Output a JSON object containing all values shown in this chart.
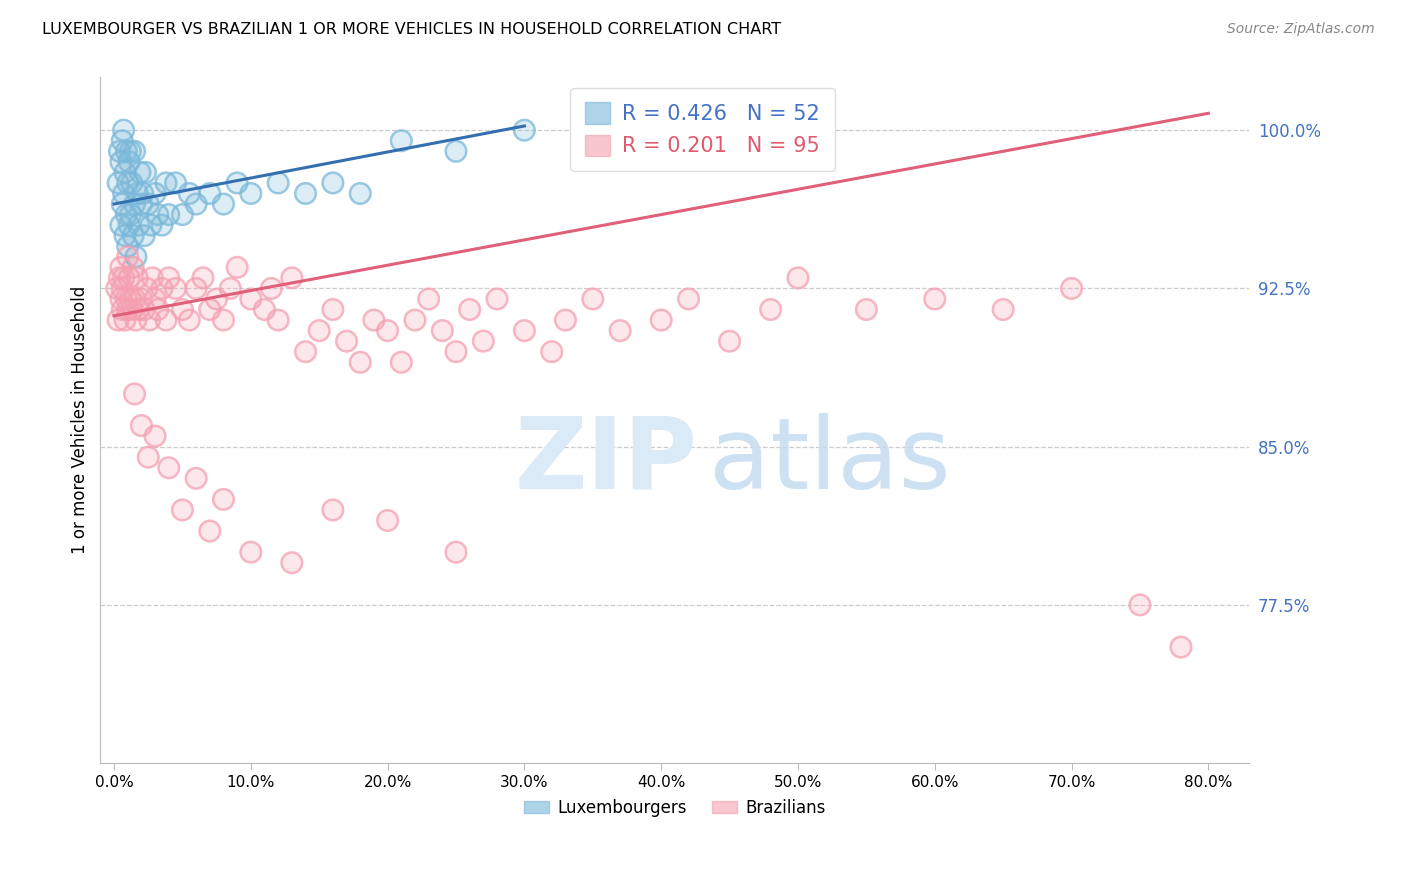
{
  "title": "LUXEMBOURGER VS BRAZILIAN 1 OR MORE VEHICLES IN HOUSEHOLD CORRELATION CHART",
  "source": "Source: ZipAtlas.com",
  "ylabel": "1 or more Vehicles in Household",
  "xlabel_ticks": [
    "0.0%",
    "10.0%",
    "20.0%",
    "30.0%",
    "40.0%",
    "50.0%",
    "60.0%",
    "70.0%",
    "80.0%"
  ],
  "xlabel_vals": [
    0.0,
    10.0,
    20.0,
    30.0,
    40.0,
    50.0,
    60.0,
    70.0,
    80.0
  ],
  "xlim": [
    -1.0,
    83.0
  ],
  "ylim": [
    70.0,
    102.5
  ],
  "blue_R": 0.426,
  "blue_N": 52,
  "pink_R": 0.201,
  "pink_N": 95,
  "blue_color": "#7ab8d9",
  "pink_color": "#f4a0b0",
  "blue_line_color": "#3470b0",
  "pink_line_color": "#e0607a",
  "legend_blue_label": "Luxembourgers",
  "legend_pink_label": "Brazilians",
  "ytick_positions": [
    77.5,
    85.0,
    92.5,
    100.0
  ],
  "ytick_labels": [
    "77.5%",
    "85.0%",
    "92.5%",
    "100.0%"
  ],
  "blue_line_x": [
    0.0,
    30.0
  ],
  "blue_line_y": [
    96.5,
    100.2
  ],
  "pink_line_x": [
    0.0,
    80.0
  ],
  "pink_line_y": [
    91.2,
    100.8
  ],
  "blue_dots_x": [
    0.3,
    0.4,
    0.5,
    0.5,
    0.6,
    0.6,
    0.7,
    0.7,
    0.8,
    0.8,
    0.9,
    0.9,
    1.0,
    1.0,
    1.1,
    1.1,
    1.2,
    1.2,
    1.3,
    1.4,
    1.5,
    1.5,
    1.6,
    1.7,
    1.8,
    1.9,
    2.0,
    2.1,
    2.2,
    2.3,
    2.5,
    2.7,
    3.0,
    3.2,
    3.5,
    3.8,
    4.0,
    4.5,
    5.0,
    5.5,
    6.0,
    7.0,
    8.0,
    9.0,
    10.0,
    12.0,
    14.0,
    16.0,
    18.0,
    21.0,
    25.0,
    30.0
  ],
  "blue_dots_y": [
    97.5,
    99.0,
    95.5,
    98.5,
    96.5,
    99.5,
    97.0,
    100.0,
    95.0,
    98.0,
    96.0,
    99.0,
    94.5,
    97.5,
    95.5,
    98.5,
    96.0,
    99.0,
    97.5,
    95.0,
    96.5,
    99.0,
    94.0,
    97.0,
    95.5,
    98.0,
    96.5,
    97.0,
    95.0,
    98.0,
    96.5,
    95.5,
    97.0,
    96.0,
    95.5,
    97.5,
    96.0,
    97.5,
    96.0,
    97.0,
    96.5,
    97.0,
    96.5,
    97.5,
    97.0,
    97.5,
    97.0,
    97.5,
    97.0,
    99.5,
    99.0,
    100.0
  ],
  "pink_dots_x": [
    0.2,
    0.3,
    0.4,
    0.5,
    0.5,
    0.6,
    0.6,
    0.7,
    0.8,
    0.9,
    1.0,
    1.0,
    1.1,
    1.2,
    1.3,
    1.4,
    1.5,
    1.6,
    1.7,
    1.8,
    2.0,
    2.2,
    2.4,
    2.6,
    2.8,
    3.0,
    3.2,
    3.5,
    3.8,
    4.0,
    4.5,
    5.0,
    5.5,
    6.0,
    6.5,
    7.0,
    7.5,
    8.0,
    8.5,
    9.0,
    10.0,
    11.0,
    11.5,
    12.0,
    13.0,
    14.0,
    15.0,
    16.0,
    17.0,
    18.0,
    19.0,
    20.0,
    21.0,
    22.0,
    23.0,
    24.0,
    25.0,
    26.0,
    27.0,
    28.0,
    30.0,
    32.0,
    33.0,
    35.0,
    37.0,
    40.0,
    42.0,
    45.0,
    48.0,
    50.0,
    55.0,
    60.0,
    65.0,
    70.0,
    75.0,
    78.0
  ],
  "pink_dots_y": [
    92.5,
    91.0,
    93.0,
    92.0,
    93.5,
    91.5,
    92.5,
    93.0,
    91.0,
    92.0,
    94.0,
    91.5,
    93.0,
    92.0,
    91.5,
    93.5,
    92.0,
    91.0,
    93.0,
    91.5,
    92.0,
    91.5,
    92.5,
    91.0,
    93.0,
    92.0,
    91.5,
    92.5,
    91.0,
    93.0,
    92.5,
    91.5,
    91.0,
    92.5,
    93.0,
    91.5,
    92.0,
    91.0,
    92.5,
    93.5,
    92.0,
    91.5,
    92.5,
    91.0,
    93.0,
    89.5,
    90.5,
    91.5,
    90.0,
    89.0,
    91.0,
    90.5,
    89.0,
    91.0,
    92.0,
    90.5,
    89.5,
    91.5,
    90.0,
    92.0,
    90.5,
    89.5,
    91.0,
    92.0,
    90.5,
    91.0,
    92.0,
    90.0,
    91.5,
    93.0,
    91.5,
    92.0,
    91.5,
    92.5,
    77.5,
    75.5
  ],
  "pink_outlier_x": [
    1.5,
    2.0,
    2.5,
    3.0,
    4.0,
    5.0,
    6.0,
    7.0,
    8.0,
    10.0,
    13.0,
    16.0,
    20.0,
    25.0
  ],
  "pink_outlier_y": [
    87.5,
    86.0,
    84.5,
    85.5,
    84.0,
    82.0,
    83.5,
    81.0,
    82.5,
    80.0,
    79.5,
    82.0,
    81.5,
    80.0
  ]
}
